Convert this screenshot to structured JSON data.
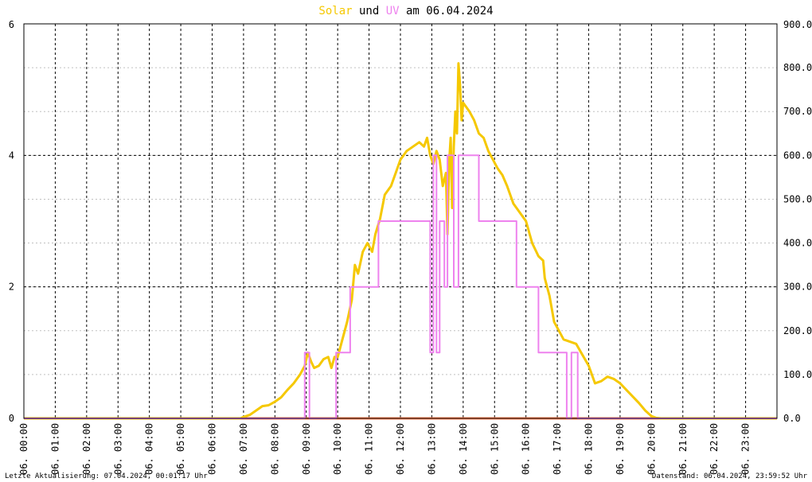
{
  "chart_data": {
    "type": "line",
    "title": {
      "part1": "Solar",
      "part2": " und ",
      "part3": "UV",
      "part4": " am 06.04.2024"
    },
    "colors": {
      "solar": "#f5c800",
      "uv": "#ee82ee",
      "baseline": "#ff7f50",
      "frame": "#000000",
      "grid_major": "#000000",
      "grid_minor": "#c0c0c0"
    },
    "x_domain": [
      0,
      24
    ],
    "xlabels": [
      "06. 00:00",
      "06. 01:00",
      "06. 02:00",
      "06. 03:00",
      "06. 04:00",
      "06. 05:00",
      "06. 06:00",
      "06. 07:00",
      "06. 08:00",
      "06. 09:00",
      "06. 10:00",
      "06. 11:00",
      "06. 12:00",
      "06. 13:00",
      "06. 14:00",
      "06. 15:00",
      "06. 16:00",
      "06. 17:00",
      "06. 18:00",
      "06. 19:00",
      "06. 20:00",
      "06. 21:00",
      "06. 22:00",
      "06. 23:00"
    ],
    "y_left": {
      "min": 0,
      "max": 6,
      "labels": [
        "0",
        "2",
        "4",
        "6"
      ]
    },
    "y_right": {
      "min": 0,
      "max": 900,
      "labels": [
        "0.0",
        "100.0",
        "200.0",
        "300.0",
        "400.0",
        "500.0",
        "600.0",
        "700.0",
        "800.0",
        "900.0"
      ]
    },
    "series": [
      {
        "key": "solar",
        "axis": "right",
        "points": [
          [
            0,
            0
          ],
          [
            6.9,
            0
          ],
          [
            7.0,
            3
          ],
          [
            7.2,
            8
          ],
          [
            7.4,
            18
          ],
          [
            7.6,
            28
          ],
          [
            7.8,
            30
          ],
          [
            8.0,
            38
          ],
          [
            8.2,
            48
          ],
          [
            8.4,
            65
          ],
          [
            8.6,
            80
          ],
          [
            8.8,
            100
          ],
          [
            8.95,
            120
          ],
          [
            9.05,
            150
          ],
          [
            9.15,
            130
          ],
          [
            9.25,
            115
          ],
          [
            9.4,
            120
          ],
          [
            9.55,
            135
          ],
          [
            9.7,
            140
          ],
          [
            9.8,
            115
          ],
          [
            9.9,
            140
          ],
          [
            10.0,
            140
          ],
          [
            10.15,
            180
          ],
          [
            10.3,
            220
          ],
          [
            10.45,
            270
          ],
          [
            10.55,
            350
          ],
          [
            10.65,
            330
          ],
          [
            10.8,
            380
          ],
          [
            10.95,
            400
          ],
          [
            11.1,
            380
          ],
          [
            11.2,
            420
          ],
          [
            11.35,
            455
          ],
          [
            11.5,
            510
          ],
          [
            11.7,
            530
          ],
          [
            11.85,
            560
          ],
          [
            12.0,
            590
          ],
          [
            12.2,
            610
          ],
          [
            12.4,
            620
          ],
          [
            12.6,
            630
          ],
          [
            12.75,
            620
          ],
          [
            12.85,
            640
          ],
          [
            12.95,
            600
          ],
          [
            13.05,
            580
          ],
          [
            13.15,
            610
          ],
          [
            13.25,
            590
          ],
          [
            13.35,
            530
          ],
          [
            13.45,
            560
          ],
          [
            13.5,
            420
          ],
          [
            13.55,
            580
          ],
          [
            13.6,
            640
          ],
          [
            13.65,
            480
          ],
          [
            13.7,
            620
          ],
          [
            13.75,
            700
          ],
          [
            13.8,
            650
          ],
          [
            13.85,
            810
          ],
          [
            13.9,
            760
          ],
          [
            13.95,
            680
          ],
          [
            14.0,
            720
          ],
          [
            14.1,
            710
          ],
          [
            14.2,
            700
          ],
          [
            14.35,
            680
          ],
          [
            14.5,
            650
          ],
          [
            14.65,
            640
          ],
          [
            14.8,
            610
          ],
          [
            14.95,
            590
          ],
          [
            15.1,
            570
          ],
          [
            15.25,
            555
          ],
          [
            15.4,
            530
          ],
          [
            15.6,
            490
          ],
          [
            15.8,
            470
          ],
          [
            16.0,
            450
          ],
          [
            16.2,
            400
          ],
          [
            16.4,
            370
          ],
          [
            16.55,
            360
          ],
          [
            16.6,
            320
          ],
          [
            16.75,
            280
          ],
          [
            16.9,
            220
          ],
          [
            17.05,
            200
          ],
          [
            17.2,
            180
          ],
          [
            17.4,
            175
          ],
          [
            17.6,
            170
          ],
          [
            17.8,
            145
          ],
          [
            18.0,
            120
          ],
          [
            18.2,
            80
          ],
          [
            18.4,
            85
          ],
          [
            18.6,
            95
          ],
          [
            18.8,
            90
          ],
          [
            19.0,
            80
          ],
          [
            19.2,
            65
          ],
          [
            19.4,
            50
          ],
          [
            19.6,
            35
          ],
          [
            19.8,
            18
          ],
          [
            20.0,
            5
          ],
          [
            20.15,
            1
          ],
          [
            20.3,
            0
          ],
          [
            24,
            0
          ]
        ]
      },
      {
        "key": "uv",
        "axis": "left",
        "points": [
          [
            0,
            0
          ],
          [
            8.95,
            0
          ],
          [
            8.95,
            1
          ],
          [
            9.1,
            1
          ],
          [
            9.1,
            0
          ],
          [
            9.95,
            0
          ],
          [
            9.95,
            1
          ],
          [
            10.4,
            1
          ],
          [
            10.4,
            2
          ],
          [
            11.3,
            2
          ],
          [
            11.3,
            3
          ],
          [
            12.95,
            3
          ],
          [
            12.95,
            1
          ],
          [
            13.05,
            1
          ],
          [
            13.05,
            4
          ],
          [
            13.15,
            4
          ],
          [
            13.15,
            1
          ],
          [
            13.25,
            1
          ],
          [
            13.25,
            3
          ],
          [
            13.4,
            3
          ],
          [
            13.4,
            2
          ],
          [
            13.5,
            2
          ],
          [
            13.5,
            4
          ],
          [
            13.7,
            4
          ],
          [
            13.7,
            2
          ],
          [
            13.85,
            2
          ],
          [
            13.85,
            4
          ],
          [
            14.5,
            4
          ],
          [
            14.5,
            3
          ],
          [
            15.7,
            3
          ],
          [
            15.7,
            2
          ],
          [
            16.4,
            2
          ],
          [
            16.4,
            1
          ],
          [
            17.3,
            1
          ],
          [
            17.3,
            0
          ],
          [
            17.45,
            0
          ],
          [
            17.45,
            1
          ],
          [
            17.65,
            1
          ],
          [
            17.65,
            0
          ],
          [
            24,
            0
          ]
        ]
      }
    ]
  },
  "footer": {
    "left": "Letzte Aktualisierung: 07.04.2024, 00:01:17 Uhr",
    "right": "Datenstand: 06.04.2024, 23:59:52 Uhr"
  }
}
